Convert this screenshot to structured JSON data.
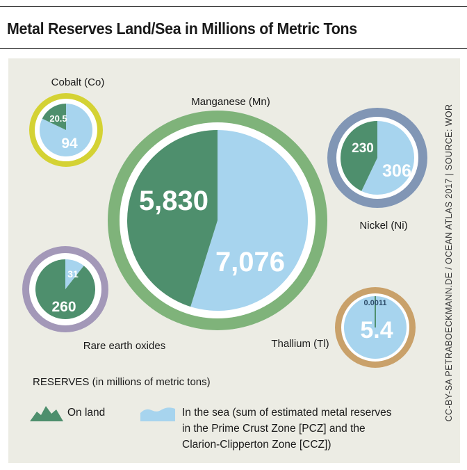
{
  "title": "Metal Reserves Land/Sea in Millions of Metric Tons",
  "credit": "CC-BY-SA PETRABOECKMANN.DE / OCEAN ATLAS 2017 | SOURCE: WOR",
  "colors": {
    "land": "#4e8f6d",
    "sea": "#a7d4ee",
    "background": "#ecece4",
    "ring_cobalt": "#d4d234",
    "ring_manganese": "#7fb37a",
    "ring_nickel": "#8196b5",
    "ring_rare_earth": "#a398b8",
    "ring_thallium": "#c9a16a"
  },
  "chart_data": {
    "type": "pie",
    "title": "Metal Reserves Land/Sea in Millions of Metric Tons",
    "unit": "millions of metric tons",
    "series_names": [
      "On land",
      "In the sea"
    ],
    "metals": [
      {
        "name": "Cobalt (Co)",
        "land": 20.5,
        "sea": 94,
        "land_label": "20.5",
        "sea_label": "94"
      },
      {
        "name": "Manganese (Mn)",
        "land": 5830,
        "sea": 7076,
        "land_label": "5,830",
        "sea_label": "7,076"
      },
      {
        "name": "Nickel (Ni)",
        "land": 230,
        "sea": 306,
        "land_label": "230",
        "sea_label": "306"
      },
      {
        "name": "Rare earth oxides",
        "land": 260,
        "sea": 31,
        "land_label": "260",
        "sea_label": "31"
      },
      {
        "name": "Thallium (Tl)",
        "land": 0.0011,
        "sea": 5.4,
        "land_label": "0.0011",
        "sea_label": "5.4"
      }
    ]
  },
  "legend": {
    "title": "RESERVES (in millions of metric tons)",
    "land_label": "On land",
    "sea_label_lines": [
      "In the sea (sum of estimated metal reserves",
      "in the Prime Crust Zone [PCZ] and the",
      "Clarion-Clipperton Zone [CCZ])"
    ]
  }
}
